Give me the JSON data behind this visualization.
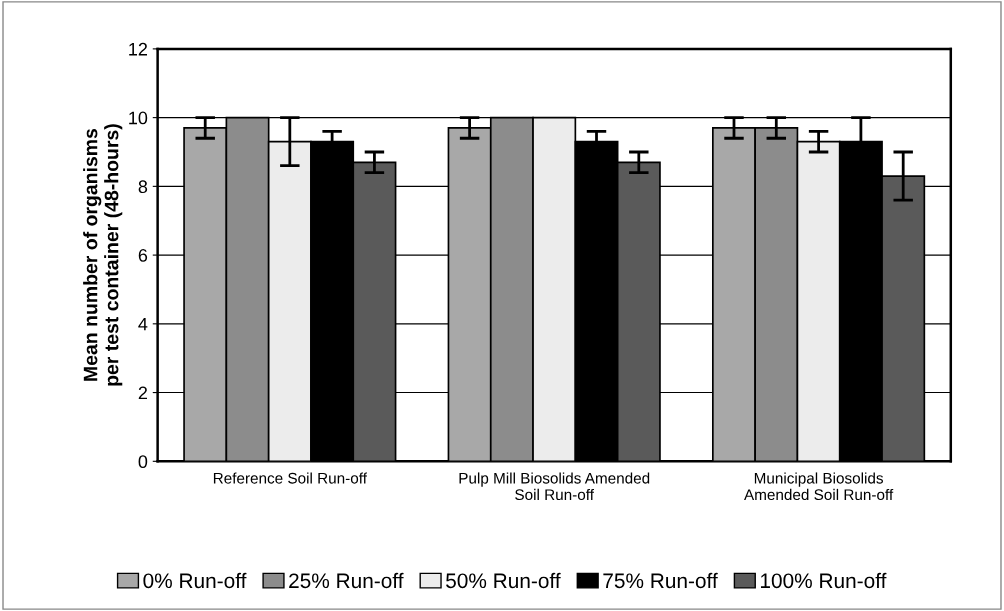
{
  "chart_data": {
    "type": "bar",
    "ylabel": "Mean number of organisms\nper test container (48-hours)",
    "categories": [
      "Reference Soil Run-off",
      "Pulp Mill Biosolids Amended\nSoil Run-off",
      "Municipal Biosolids\nAmended Soil Run-off"
    ],
    "series": [
      {
        "name": "0% Run-off",
        "color": "#a8a8a8",
        "values": [
          9.7,
          9.7,
          9.7
        ],
        "errors": [
          0.3,
          0.3,
          0.3
        ]
      },
      {
        "name": "25% Run-off",
        "color": "#8c8c8c",
        "values": [
          10,
          10,
          9.7
        ],
        "errors": [
          null,
          null,
          0.3
        ]
      },
      {
        "name": "50% Run-off",
        "color": "#ececec",
        "values": [
          9.3,
          10,
          9.3
        ],
        "errors": [
          0.7,
          null,
          0.3
        ]
      },
      {
        "name": "75% Run-off",
        "color": "#000000",
        "values": [
          9.3,
          9.3,
          9.3
        ],
        "errors": [
          0.3,
          0.3,
          0.7
        ]
      },
      {
        "name": "100% Run-off",
        "color": "#5a5a5a",
        "values": [
          8.7,
          8.7,
          8.3
        ],
        "errors": [
          0.3,
          0.3,
          0.7
        ]
      }
    ],
    "ylim": [
      0,
      12
    ],
    "yticks": [
      0,
      2,
      4,
      6,
      8,
      10,
      12
    ],
    "grid": "y",
    "legend": "bottom"
  }
}
